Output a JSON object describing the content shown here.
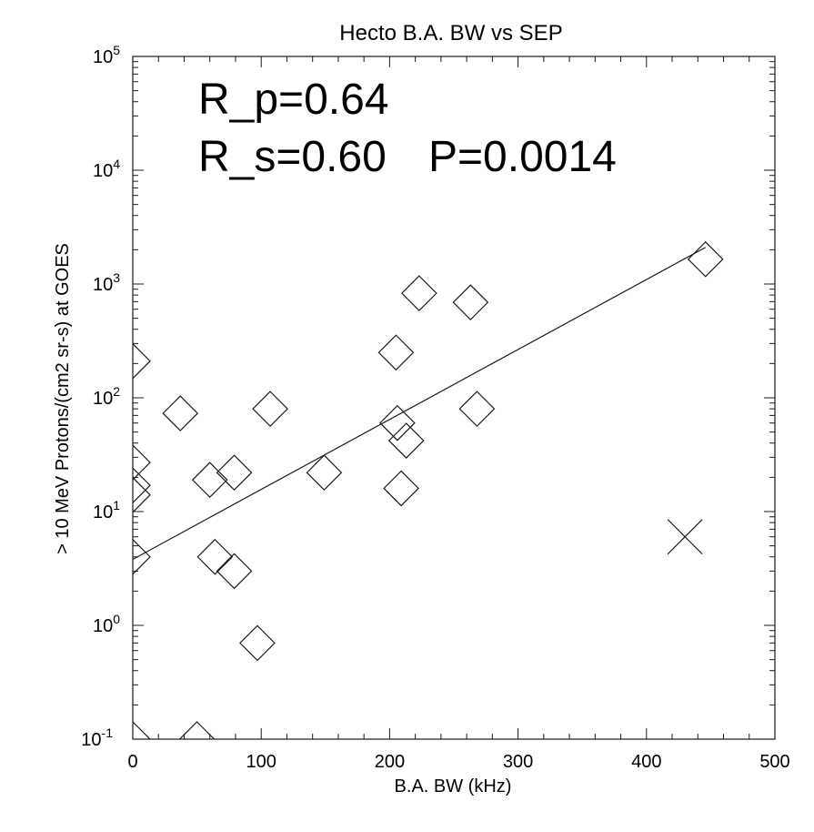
{
  "chart_data": {
    "type": "scatter",
    "title": "Hecto B.A. BW vs SEP",
    "xlabel": "B.A. BW (kHz)",
    "ylabel": "> 10 MeV Protons/(cm2 sr-s) at GOES",
    "xlim": [
      0,
      500
    ],
    "ylim": [
      0.1,
      100000
    ],
    "yscale": "log",
    "x_ticks": [
      0,
      100,
      200,
      300,
      400,
      500
    ],
    "x_tick_labels": [
      "0",
      "100",
      "200",
      "300",
      "400",
      "500"
    ],
    "y_ticks": [
      0.1,
      1,
      10,
      100,
      1000,
      10000,
      100000
    ],
    "y_tick_labels": [
      {
        "base": "10",
        "exp": "-1"
      },
      {
        "base": "10",
        "exp": "0"
      },
      {
        "base": "10",
        "exp": "1"
      },
      {
        "base": "10",
        "exp": "2"
      },
      {
        "base": "10",
        "exp": "3"
      },
      {
        "base": "10",
        "exp": "4"
      },
      {
        "base": "10",
        "exp": "5"
      }
    ],
    "annotations": [
      "R_p=0.64",
      "R_s=0.60",
      "P=0.0014"
    ],
    "series": [
      {
        "marker": "diamond",
        "points": [
          [
            0,
            210
          ],
          [
            0,
            27
          ],
          [
            0,
            17
          ],
          [
            0,
            14
          ],
          [
            0,
            4
          ],
          [
            0,
            0.1
          ],
          [
            37,
            73
          ],
          [
            50,
            0.1
          ],
          [
            60,
            19
          ],
          [
            64,
            4
          ],
          [
            79,
            22
          ],
          [
            79,
            3
          ],
          [
            97,
            0.7
          ],
          [
            107,
            80
          ],
          [
            149,
            22
          ],
          [
            205,
            250
          ],
          [
            206,
            60
          ],
          [
            209,
            16
          ],
          [
            213,
            42
          ],
          [
            223,
            830
          ],
          [
            263,
            690
          ],
          [
            268,
            80
          ],
          [
            446,
            1650
          ]
        ]
      },
      {
        "marker": "x",
        "points": [
          [
            430,
            6
          ]
        ]
      }
    ],
    "fit_line": {
      "x": [
        0,
        446
      ],
      "y": [
        3.8,
        2100
      ]
    },
    "grid": false
  }
}
